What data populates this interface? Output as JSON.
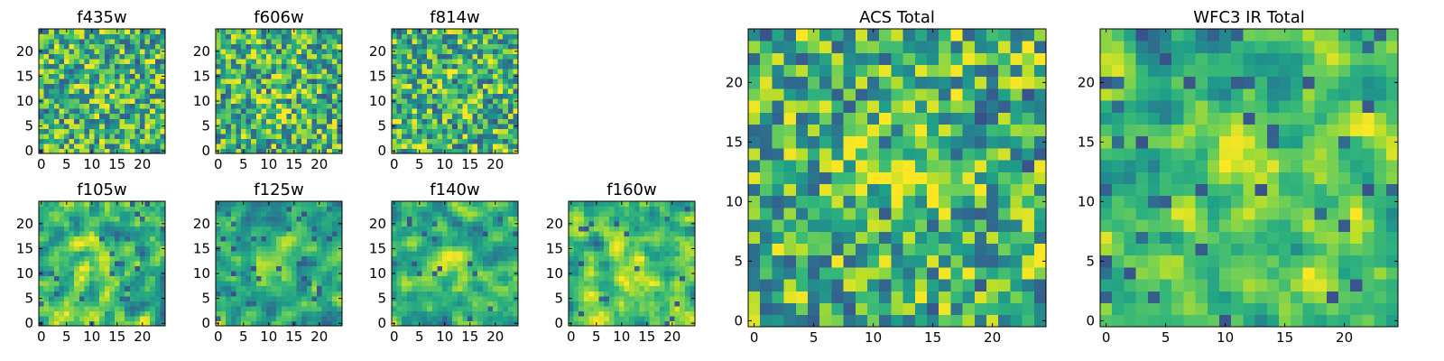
{
  "chart_data": [
    {
      "id": "f435w",
      "type": "heatmap",
      "title": "f435w",
      "grid_size": 25,
      "xlim": [
        -0.5,
        24.5
      ],
      "ylim": [
        -0.5,
        24.5
      ],
      "xticks": [
        0,
        5,
        10,
        15,
        20
      ],
      "yticks": [
        0,
        5,
        10,
        15,
        20
      ],
      "colormap": "viridis",
      "seed": 11,
      "smooth": 0,
      "center_boost": 0.1,
      "colorbar": false
    },
    {
      "id": "f606w",
      "type": "heatmap",
      "title": "f606w",
      "grid_size": 25,
      "xlim": [
        -0.5,
        24.5
      ],
      "ylim": [
        -0.5,
        24.5
      ],
      "xticks": [
        0,
        5,
        10,
        15,
        20
      ],
      "yticks": [
        0,
        5,
        10,
        15,
        20
      ],
      "colormap": "viridis",
      "seed": 23,
      "smooth": 0,
      "center_boost": 0.18,
      "colorbar": false
    },
    {
      "id": "f814w",
      "type": "heatmap",
      "title": "f814w",
      "grid_size": 25,
      "xlim": [
        -0.5,
        24.5
      ],
      "ylim": [
        -0.5,
        24.5
      ],
      "xticks": [
        0,
        5,
        10,
        15,
        20
      ],
      "yticks": [
        0,
        5,
        10,
        15,
        20
      ],
      "colormap": "viridis",
      "seed": 37,
      "smooth": 0,
      "center_boost": 0.15,
      "colorbar": false
    },
    {
      "id": "f105w",
      "type": "heatmap",
      "title": "f105w",
      "grid_size": 25,
      "xlim": [
        -0.5,
        24.5
      ],
      "ylim": [
        -0.5,
        24.5
      ],
      "xticks": [
        0,
        5,
        10,
        15,
        20
      ],
      "yticks": [
        0,
        5,
        10,
        15,
        20
      ],
      "colormap": "viridis",
      "seed": 41,
      "smooth": 1,
      "center_boost": 0.3,
      "colorbar": false
    },
    {
      "id": "f125w",
      "type": "heatmap",
      "title": "f125w",
      "grid_size": 25,
      "xlim": [
        -0.5,
        24.5
      ],
      "ylim": [
        -0.5,
        24.5
      ],
      "xticks": [
        0,
        5,
        10,
        15,
        20
      ],
      "yticks": [
        0,
        5,
        10,
        15,
        20
      ],
      "colormap": "viridis",
      "seed": 53,
      "smooth": 1,
      "center_boost": 0.22,
      "colorbar": false
    },
    {
      "id": "f140w",
      "type": "heatmap",
      "title": "f140w",
      "grid_size": 25,
      "xlim": [
        -0.5,
        24.5
      ],
      "ylim": [
        -0.5,
        24.5
      ],
      "xticks": [
        0,
        5,
        10,
        15,
        20
      ],
      "yticks": [
        0,
        5,
        10,
        15,
        20
      ],
      "colormap": "viridis",
      "seed": 67,
      "smooth": 1,
      "center_boost": 0.25,
      "colorbar": false
    },
    {
      "id": "f160w",
      "type": "heatmap",
      "title": "f160w",
      "grid_size": 25,
      "xlim": [
        -0.5,
        24.5
      ],
      "ylim": [
        -0.5,
        24.5
      ],
      "xticks": [
        0,
        5,
        10,
        15,
        20
      ],
      "yticks": [
        0,
        5,
        10,
        15,
        20
      ],
      "colormap": "viridis",
      "seed": 79,
      "smooth": 1,
      "center_boost": 0.25,
      "colorbar": false
    },
    {
      "id": "acs_total",
      "type": "heatmap",
      "title": "ACS Total",
      "grid_size": 25,
      "xlim": [
        -0.5,
        24.5
      ],
      "ylim": [
        -0.5,
        24.5
      ],
      "xticks": [
        0,
        5,
        10,
        15,
        20
      ],
      "yticks": [
        0,
        5,
        10,
        15,
        20
      ],
      "colormap": "viridis",
      "seed": 97,
      "smooth": 0,
      "center_boost": 0.22,
      "colorbar": false
    },
    {
      "id": "wfc3_ir_total",
      "type": "heatmap",
      "title": "WFC3 IR Total",
      "grid_size": 25,
      "xlim": [
        -0.5,
        24.5
      ],
      "ylim": [
        -0.5,
        24.5
      ],
      "xticks": [
        0,
        5,
        10,
        15,
        20
      ],
      "yticks": [
        0,
        5,
        10,
        15,
        20
      ],
      "colormap": "viridis",
      "seed": 131,
      "smooth": 1,
      "center_boost": 0.4,
      "colorbar": false
    }
  ],
  "colors": {
    "viridis": [
      "#440154",
      "#482878",
      "#3e4989",
      "#31688e",
      "#26828e",
      "#1f9e89",
      "#35b779",
      "#6ece58",
      "#b5de2b",
      "#fde725"
    ],
    "axis": "#000000",
    "background": "#ffffff"
  }
}
